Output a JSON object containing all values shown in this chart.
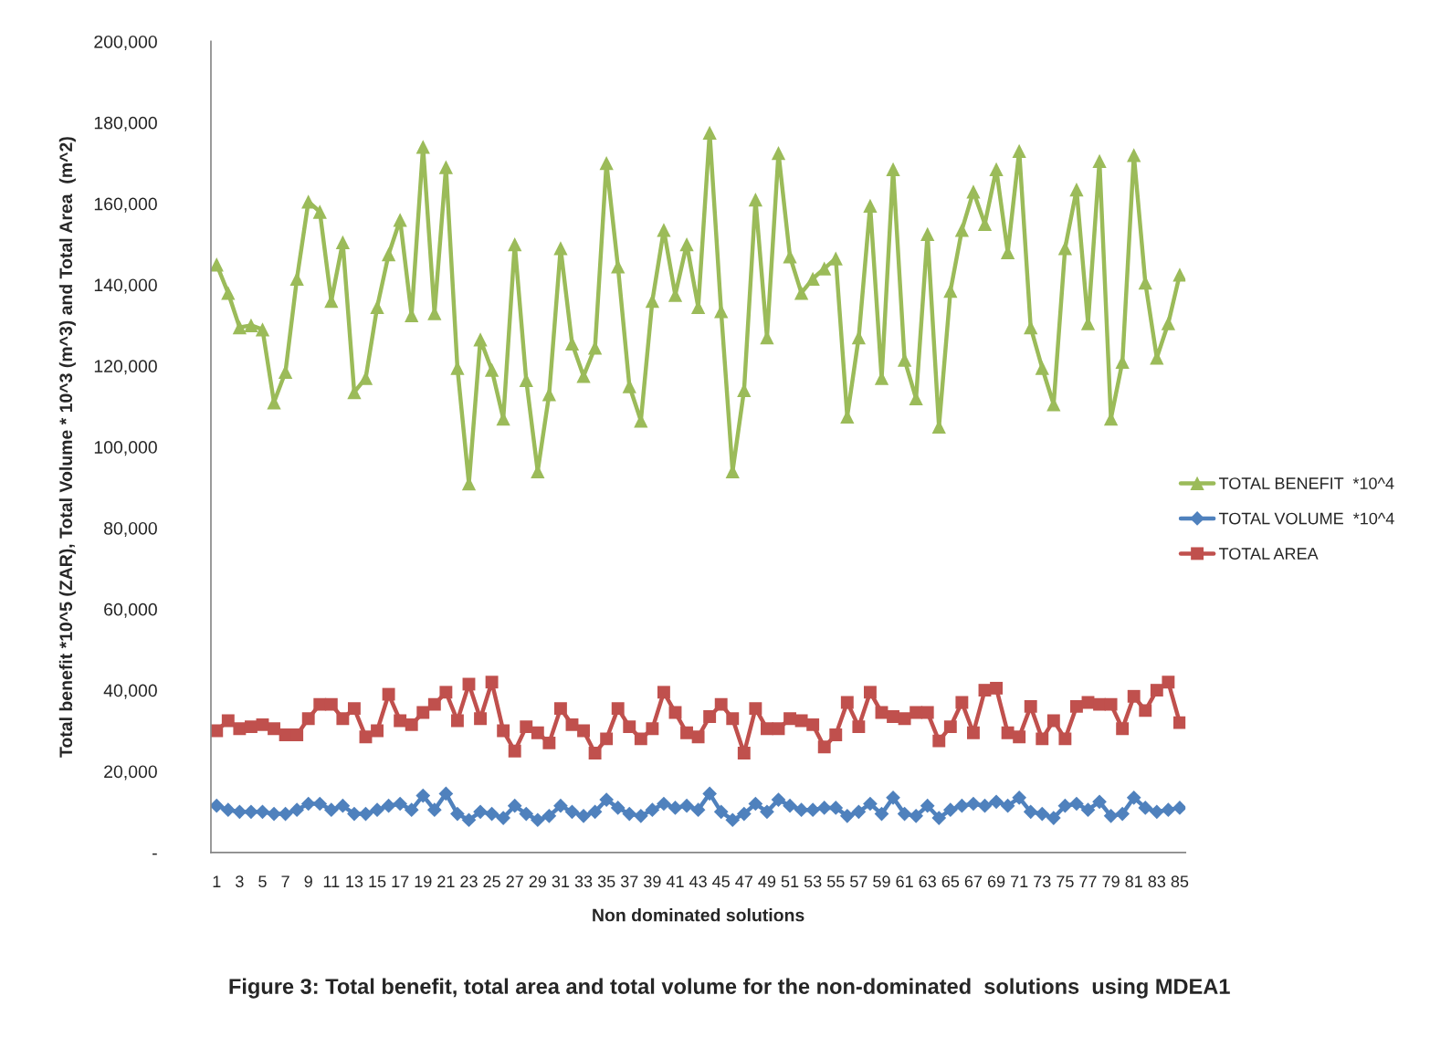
{
  "chart_data": {
    "type": "line",
    "xlabel": "Non dominated solutions",
    "ylabel": "Total benefit *10^5 (ZAR), Total Volume * 10^3 (m^3) and Total Area  (m^2)",
    "annotations": [
      "Figure 3: Total benefit, total area and total volume for the non-dominated  solutions  using MDEA1"
    ],
    "categories": [
      "1",
      null,
      "3",
      null,
      "5",
      null,
      "7",
      null,
      "9",
      null,
      "11",
      null,
      "13",
      null,
      "15",
      null,
      "17",
      null,
      "19",
      null,
      "21",
      null,
      "23",
      null,
      "25",
      null,
      "27",
      null,
      "29",
      null,
      "31",
      null,
      "33",
      null,
      "35",
      null,
      "37",
      null,
      "39",
      null,
      "41",
      null,
      "43",
      null,
      "45",
      null,
      "47",
      null,
      "49",
      null,
      "51",
      null,
      "53",
      null,
      "55",
      null,
      "57",
      null,
      "59",
      null,
      "61",
      null,
      "63",
      null,
      "65",
      null,
      "67",
      null,
      "69",
      null,
      "71",
      null,
      "73",
      null,
      "75",
      null,
      "77",
      null,
      "79",
      null,
      "81",
      null,
      "83",
      null,
      "85"
    ],
    "ylim": [
      0,
      200000
    ],
    "yticks": [
      {
        "value": 0,
        "label": "-"
      },
      {
        "value": 20000,
        "label": "20,000"
      },
      {
        "value": 40000,
        "label": "40,000"
      },
      {
        "value": 60000,
        "label": "60,000"
      },
      {
        "value": 80000,
        "label": "80,000"
      },
      {
        "value": 100000,
        "label": "100,000"
      },
      {
        "value": 120000,
        "label": "120,000"
      },
      {
        "value": 140000,
        "label": "140,000"
      },
      {
        "value": 160000,
        "label": "160,000"
      },
      {
        "value": 180000,
        "label": "180,000"
      },
      {
        "value": 200000,
        "label": "200,000"
      }
    ],
    "grid": false,
    "legend": "right",
    "series": [
      {
        "name": "TOTAL BENEFIT  *10^4",
        "color": "#9bbb59",
        "marker": "triangle",
        "values": [
          145000,
          138000,
          129500,
          130000,
          129000,
          111000,
          118500,
          141500,
          160500,
          158000,
          136000,
          150500,
          113500,
          117000,
          134500,
          147500,
          156000,
          132500,
          174000,
          133000,
          169000,
          119500,
          91000,
          126500,
          119000,
          107000,
          150000,
          116500,
          94000,
          113000,
          149000,
          125500,
          117500,
          124500,
          170000,
          144500,
          115000,
          106500,
          136000,
          153500,
          137500,
          150000,
          134500,
          177500,
          133500,
          94000,
          114000,
          161000,
          127000,
          172500,
          147000,
          138000,
          141500,
          144000,
          146500,
          107500,
          127000,
          159500,
          117000,
          168500,
          121500,
          112000,
          152500,
          105000,
          138500,
          153500,
          163000,
          155000,
          168500,
          148000,
          173000,
          129500,
          119500,
          110500,
          149000,
          163500,
          130500,
          170500,
          107000,
          121000,
          172000,
          140500,
          122000,
          130500,
          142500
        ]
      },
      {
        "name": "TOTAL VOLUME  *10^4",
        "color": "#4f81bd",
        "marker": "diamond",
        "values": [
          11500,
          10500,
          10000,
          10000,
          10000,
          9500,
          9500,
          10500,
          12000,
          12000,
          10500,
          11500,
          9500,
          9500,
          10500,
          11500,
          12000,
          10500,
          14000,
          10500,
          14500,
          9500,
          8000,
          10000,
          9500,
          8500,
          11500,
          9500,
          8000,
          9000,
          11500,
          10000,
          9000,
          10000,
          13000,
          11000,
          9500,
          9000,
          10500,
          12000,
          11000,
          11500,
          10500,
          14500,
          10000,
          8000,
          9500,
          12000,
          10000,
          13000,
          11500,
          10500,
          10500,
          11000,
          11000,
          9000,
          10000,
          12000,
          9500,
          13500,
          9500,
          9000,
          11500,
          8500,
          10500,
          11500,
          12000,
          11500,
          12500,
          11500,
          13500,
          10000,
          9500,
          8500,
          11500,
          12000,
          10500,
          12500,
          9000,
          9500,
          13500,
          11000,
          10000,
          10500,
          11000
        ]
      },
      {
        "name": "TOTAL AREA",
        "color": "#c0504d",
        "marker": "square",
        "values": [
          30000,
          32500,
          30500,
          31000,
          31500,
          30500,
          29000,
          29000,
          33000,
          36500,
          36500,
          33000,
          35500,
          28500,
          30000,
          39000,
          32500,
          31500,
          34500,
          36500,
          39500,
          32500,
          41500,
          33000,
          42000,
          30000,
          25000,
          31000,
          29500,
          27000,
          35500,
          31500,
          30000,
          24500,
          28000,
          35500,
          31000,
          28000,
          30500,
          39500,
          34500,
          29500,
          28500,
          33500,
          36500,
          33000,
          24500,
          35500,
          30500,
          30500,
          33000,
          32500,
          31500,
          26000,
          29000,
          37000,
          31000,
          39500,
          34500,
          33500,
          33000,
          34500,
          34500,
          27500,
          31000,
          37000,
          29500,
          40000,
          40500,
          29500,
          28500,
          36000,
          28000,
          32500,
          28000,
          36000,
          37000,
          36500,
          36500,
          30500,
          38500,
          35000,
          40000,
          42000,
          32000
        ]
      }
    ]
  }
}
